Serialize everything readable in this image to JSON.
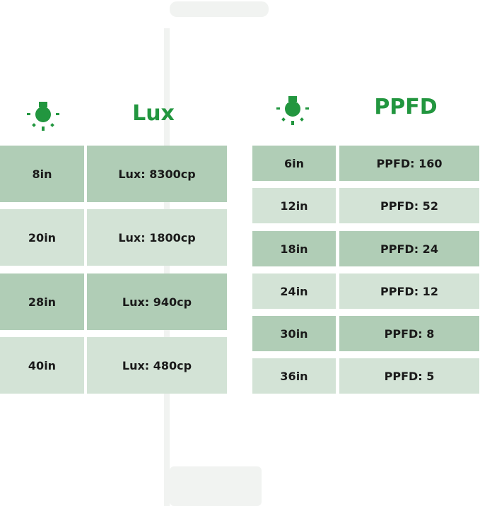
{
  "accent": "#22963f",
  "colors": {
    "row_dark": "#b0cdb6",
    "row_light": "#d3e3d6"
  },
  "lux": {
    "icon": "light-bulb-icon",
    "title": "Lux",
    "rows": [
      {
        "distance": "8in",
        "value": "Lux: 8300cp"
      },
      {
        "distance": "20in",
        "value": "Lux: 1800cp"
      },
      {
        "distance": "28in",
        "value": "Lux: 940cp"
      },
      {
        "distance": "40in",
        "value": "Lux: 480cp"
      }
    ]
  },
  "ppfd": {
    "icon": "light-bulb-icon",
    "title": "PPFD",
    "rows": [
      {
        "distance": "6in",
        "value": "PPFD: 160"
      },
      {
        "distance": "12in",
        "value": "PPFD: 52"
      },
      {
        "distance": "18in",
        "value": "PPFD: 24"
      },
      {
        "distance": "24in",
        "value": "PPFD: 12"
      },
      {
        "distance": "30in",
        "value": "PPFD: 8"
      },
      {
        "distance": "36in",
        "value": "PPFD: 5"
      }
    ]
  }
}
